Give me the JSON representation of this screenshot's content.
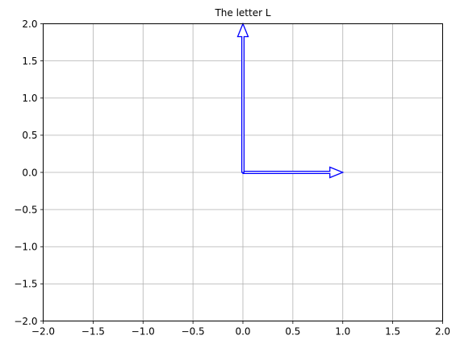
{
  "chart_data": {
    "type": "vector",
    "title": "The letter L",
    "xlabel": "",
    "ylabel": "",
    "xlim": [
      -2,
      2
    ],
    "ylim": [
      -2,
      2
    ],
    "grid": true,
    "x_ticks": [
      -2.0,
      -1.5,
      -1.0,
      -0.5,
      0.0,
      0.5,
      1.0,
      1.5,
      2.0
    ],
    "y_ticks": [
      -2.0,
      -1.5,
      -1.0,
      -0.5,
      0.0,
      0.5,
      1.0,
      1.5,
      2.0
    ],
    "x_tick_labels": [
      "−2.0",
      "−1.5",
      "−1.0",
      "−0.5",
      "0.0",
      "0.5",
      "1.0",
      "1.5",
      "2.0"
    ],
    "y_tick_labels": [
      "−2.0",
      "−1.5",
      "−1.0",
      "−0.5",
      "0.0",
      "0.5",
      "1.0",
      "1.5",
      "2.0"
    ],
    "vectors": [
      {
        "x0": 0,
        "y0": 0,
        "dx": 1,
        "dy": 0
      },
      {
        "x0": 0,
        "y0": 0,
        "dx": 0,
        "dy": 2
      }
    ],
    "vector_color": "#0000ff",
    "grid_color": "#b0b0b0"
  }
}
